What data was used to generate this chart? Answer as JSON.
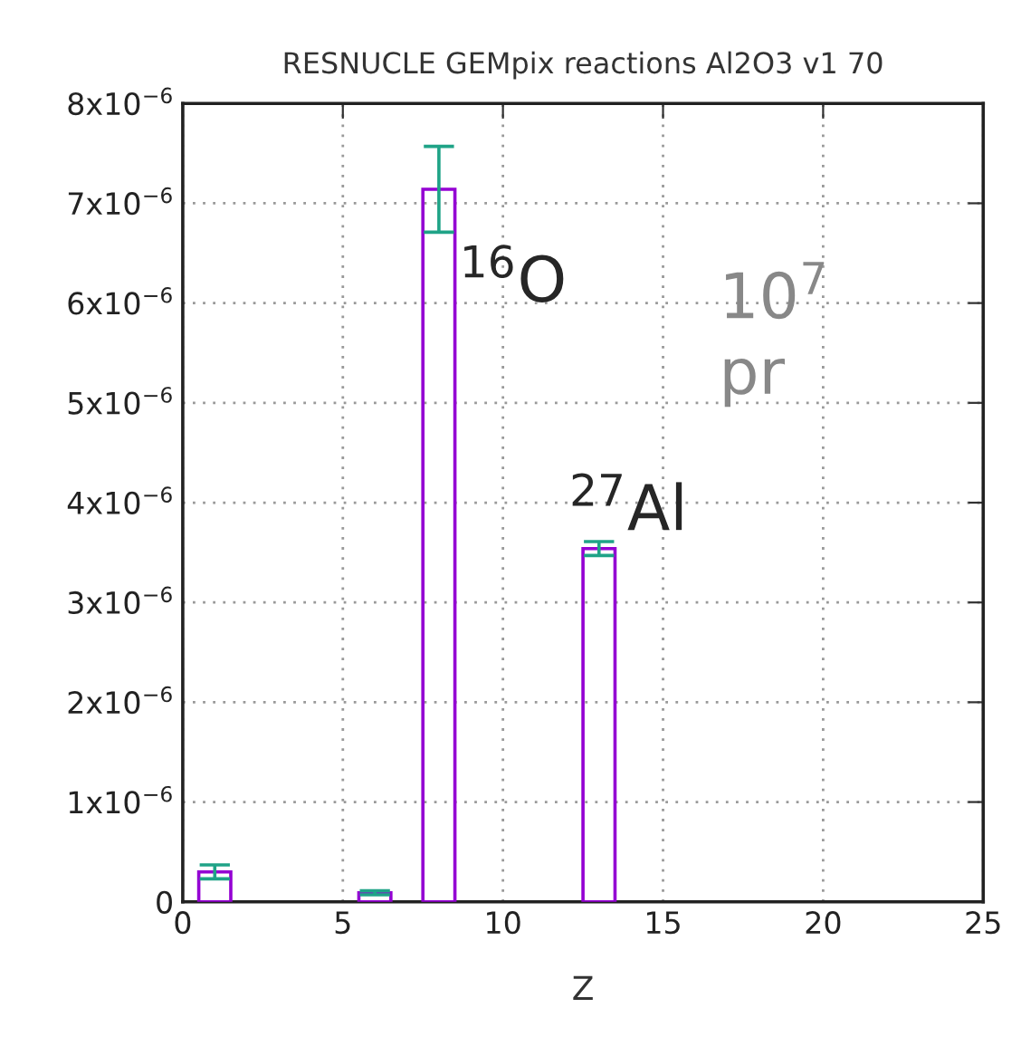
{
  "chart_data": {
    "type": "bar",
    "title": "RESNUCLE GEMpix reactions Al2O3 v1 70",
    "xlabel": "Z",
    "x": [
      1,
      6,
      8,
      13
    ],
    "series": [
      {
        "color": "#9400d3",
        "values": [
          3e-07,
          9e-08,
          7.14e-06,
          3.54e-06
        ],
        "errors": [
          7e-08,
          2e-08,
          4.3e-07,
          7e-08
        ]
      }
    ],
    "xlim": [
      0,
      25
    ],
    "xticks": [
      0,
      5,
      10,
      15,
      20,
      25
    ],
    "ylim": [
      0,
      8e-06
    ],
    "yticks": [
      {
        "value": 0,
        "label": "0"
      },
      {
        "value": 1e-06,
        "label": "1x10$^{−6}$"
      },
      {
        "value": 2e-06,
        "label": "2x10$^{−6}$"
      },
      {
        "value": 3e-06,
        "label": "3x10$^{−6}$"
      },
      {
        "value": 4e-06,
        "label": "4x10$^{−6}$"
      },
      {
        "value": 5e-06,
        "label": "5x10$^{−6}$"
      },
      {
        "value": 6e-06,
        "label": "6x10$^{−6}$"
      },
      {
        "value": 7e-06,
        "label": "7x10$^{−6}$"
      },
      {
        "value": 8e-06,
        "label": "8x10$^{−6}$"
      }
    ],
    "grid": true,
    "legend": false,
    "annotations": [
      {
        "text": "$^{16}$O",
        "x": 8,
        "y": 7.14e-06
      },
      {
        "text": "$^{27}$Al",
        "x": 13,
        "y": 3.54e-06
      },
      "10$^{7}$\npr"
    ]
  }
}
